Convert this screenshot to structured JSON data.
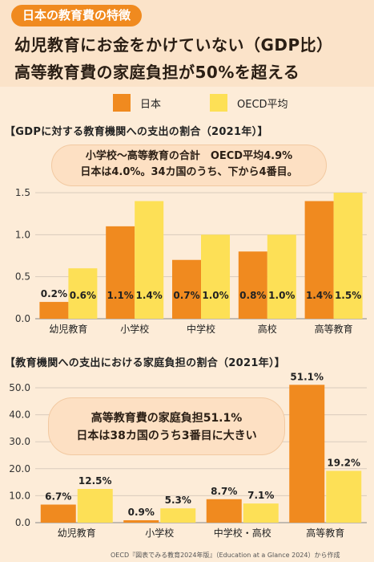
{
  "header": {
    "tag": "日本の教育費の特徴",
    "line1": "幼児教育にお金をかけていない（GDP比）",
    "line2": "高等教育費の家庭負担が50%を超える"
  },
  "legend": [
    "日本",
    "OECD平均"
  ],
  "colors": {
    "japan": "#f08a1f",
    "oecd": "#fde056",
    "accent": "#f08a1f"
  },
  "chart_data": [
    {
      "type": "bar",
      "title": "【GDPに対する教育機関への支出の割合（2021年）】",
      "annotation": [
        "小学校〜高等教育の合計　OECD平均4.9%",
        "日本は4.0%。34カ国のうち、下から4番目。"
      ],
      "categories": [
        "幼児教育",
        "小学校",
        "中学校",
        "高校",
        "高等教育"
      ],
      "series": [
        {
          "name": "日本",
          "values": [
            0.2,
            1.1,
            0.7,
            0.8,
            1.4
          ],
          "labels": [
            "0.2%",
            "1.1%",
            "0.7%",
            "0.8%",
            "1.4%"
          ]
        },
        {
          "name": "OECD平均",
          "values": [
            0.6,
            1.4,
            1.0,
            1.0,
            1.5
          ],
          "labels": [
            "0.6%",
            "1.4%",
            "1.0%",
            "1.0%",
            "1.5%"
          ]
        }
      ],
      "yticks": [
        "0.0",
        "0.5",
        "1.0",
        "1.5"
      ],
      "ylim": [
        0,
        1.5
      ]
    },
    {
      "type": "bar",
      "title": "【教育機関への支出における家庭負担の割合（2021年）】",
      "annotation": [
        "高等教育費の家庭負担51.1%",
        "日本は38カ国のうち3番目に大きい"
      ],
      "categories": [
        "幼児教育",
        "小学校",
        "中学校・高校",
        "高等教育"
      ],
      "series": [
        {
          "name": "日本",
          "values": [
            6.7,
            0.9,
            8.7,
            51.1
          ],
          "labels": [
            "6.7%",
            "0.9%",
            "8.7%",
            "51.1%"
          ]
        },
        {
          "name": "OECD平均",
          "values": [
            12.5,
            5.3,
            7.1,
            19.2
          ],
          "labels": [
            "12.5%",
            "5.3%",
            "7.1%",
            "19.2%"
          ]
        }
      ],
      "yticks": [
        "0.0",
        "10.0",
        "20.0",
        "30.0",
        "40.0",
        "50.0"
      ],
      "ylim": [
        0,
        50
      ]
    }
  ],
  "source": "OECD『図表でみる教育2024年版』（Education at a Glance 2024）から作成"
}
